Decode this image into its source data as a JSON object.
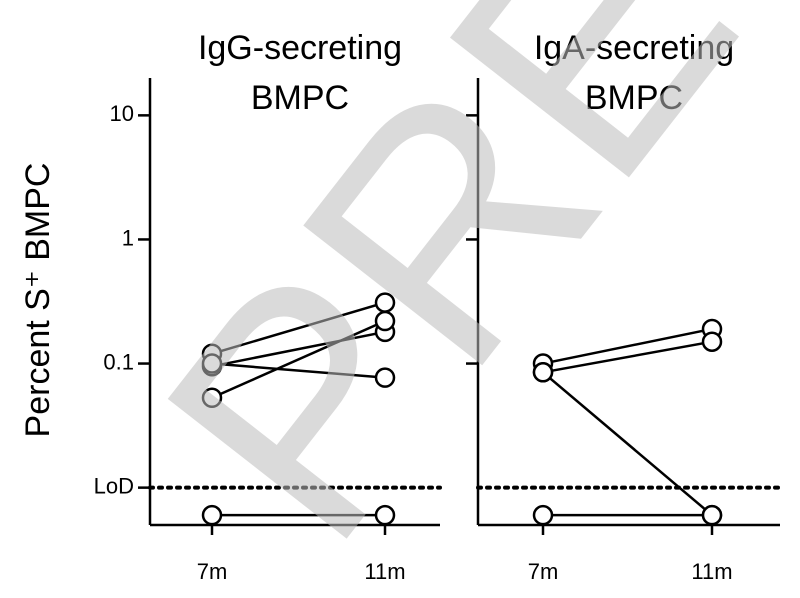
{
  "chart_data": [
    {
      "type": "paired",
      "title": [
        "IgG-secreting",
        "BMPC"
      ],
      "ylabel": "Percent S⁺ BMPC",
      "categories": [
        "7m",
        "11m"
      ],
      "log_y": true,
      "ylim": [
        0.005,
        20
      ],
      "yticks": [
        10,
        1,
        0.1,
        {
          "value": 0.01,
          "label": "LoD"
        }
      ],
      "reference_line": 0.01,
      "series": [
        {
          "color": "#000000",
          "values": [
            0.12,
            0.31
          ]
        },
        {
          "color": "#000000",
          "values": [
            0.095,
            0.18
          ]
        },
        {
          "color": "#000000",
          "values": [
            0.1,
            0.077
          ]
        },
        {
          "color": "#000000",
          "values": [
            0.053,
            0.22
          ]
        },
        {
          "color": "#000000",
          "values": [
            0.006,
            0.006
          ]
        }
      ]
    },
    {
      "type": "paired",
      "title": [
        "IgA-secreting",
        "BMPC"
      ],
      "categories": [
        "7m",
        "11m"
      ],
      "log_y": true,
      "ylim": [
        0.005,
        20
      ],
      "yticks": [
        10,
        1,
        0.1
      ],
      "reference_line": 0.01,
      "series": [
        {
          "color": "#000000",
          "values": [
            0.1,
            0.19
          ]
        },
        {
          "color": "#000000",
          "values": [
            0.085,
            0.15
          ]
        },
        {
          "color": "#000000",
          "values": [
            0.085,
            0.006
          ]
        },
        {
          "color": "#000000",
          "values": [
            0.006,
            0.006
          ]
        }
      ]
    }
  ],
  "watermark": "PREVIEW"
}
